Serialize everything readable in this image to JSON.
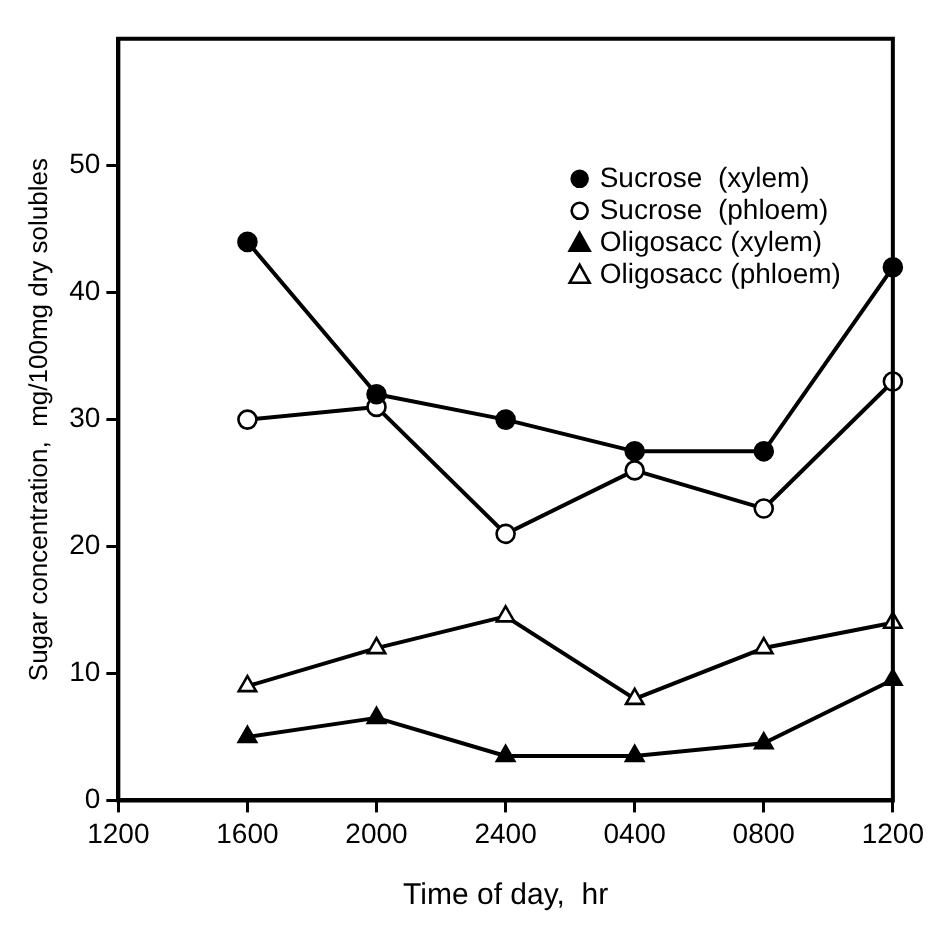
{
  "chart_data": {
    "type": "line",
    "xlabel": "Time of day,  hr",
    "ylabel": "Sugar concentration,  mg/100mg dry solubles",
    "categories": [
      "1200",
      "1600",
      "2000",
      "2400",
      "0400",
      "0800",
      "1200"
    ],
    "series": [
      {
        "name": "Sucrose  (xylem)",
        "color": "#000000",
        "marker": "circle",
        "values": [
          null,
          44,
          32,
          30,
          27.5,
          27.5,
          42
        ]
      },
      {
        "name": "Sucrose  (phloem)",
        "color": "#000000",
        "marker": "circle-open",
        "values": [
          null,
          30,
          31,
          21,
          26,
          23,
          33
        ]
      },
      {
        "name": "Oligosacc (xylem)",
        "color": "#000000",
        "marker": "triangle",
        "values": [
          null,
          5,
          6.5,
          3.5,
          3.5,
          4.5,
          9.5
        ]
      },
      {
        "name": "Oligosacc (phloem)",
        "color": "#000000",
        "marker": "triangle-open",
        "values": [
          null,
          9,
          12,
          14.5,
          8,
          12,
          14
        ]
      }
    ],
    "ylim": [
      0,
      60
    ],
    "yticks": [
      0,
      10,
      20,
      30,
      40,
      50
    ],
    "grid": false,
    "legend": "top right"
  }
}
